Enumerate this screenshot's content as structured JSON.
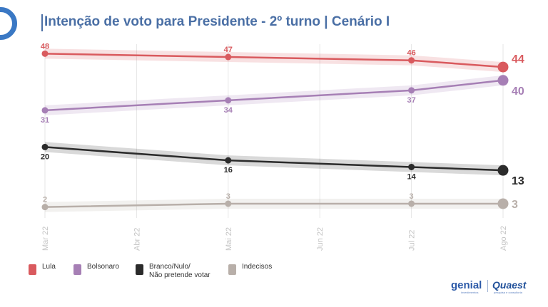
{
  "title": "Intenção de voto para Presidente - 2º turno | Cenário I",
  "brand": {
    "genial": "genial",
    "genial_sub": "investimentos",
    "quaest": "Quaest",
    "quaest_sub": "pesquisa e consultoria"
  },
  "chart_data": {
    "type": "line",
    "title": "Intenção de voto para Presidente - 2º turno | Cenário I",
    "xlabel": "",
    "ylabel": "",
    "x": [
      "Mar 22",
      "Abr 22",
      "Mai 22",
      "Jun 22",
      "Jul 22",
      "Ago 22"
    ],
    "ylim": [
      0,
      50
    ],
    "grid": "vertical",
    "legend_position": "bottom-left",
    "series": [
      {
        "name": "Lula",
        "color": "#d95a5e",
        "label_pos": "above",
        "points": [
          {
            "x": "Mar 22",
            "y": 48
          },
          {
            "x": "Mai 22",
            "y": 47
          },
          {
            "x": "Jul 22",
            "y": 46
          },
          {
            "x": "Ago 22",
            "y": 44
          }
        ]
      },
      {
        "name": "Bolsonaro",
        "color": "#a67fb5",
        "label_pos": "below",
        "points": [
          {
            "x": "Mar 22",
            "y": 31
          },
          {
            "x": "Mai 22",
            "y": 34
          },
          {
            "x": "Jul 22",
            "y": 37
          },
          {
            "x": "Ago 22",
            "y": 40
          }
        ]
      },
      {
        "name": "Branco/Nulo/\nNão pretende votar",
        "color": "#2b2b2b",
        "label_pos": "below",
        "points": [
          {
            "x": "Mar 22",
            "y": 20
          },
          {
            "x": "Mai 22",
            "y": 16
          },
          {
            "x": "Jul 22",
            "y": 14
          },
          {
            "x": "Ago 22",
            "y": 13
          }
        ]
      },
      {
        "name": "Indecisos",
        "color": "#b8afa9",
        "label_pos": "above",
        "points": [
          {
            "x": "Mar 22",
            "y": 2
          },
          {
            "x": "Mai 22",
            "y": 3
          },
          {
            "x": "Jul 22",
            "y": 3
          },
          {
            "x": "Ago 22",
            "y": 3
          }
        ]
      }
    ]
  }
}
